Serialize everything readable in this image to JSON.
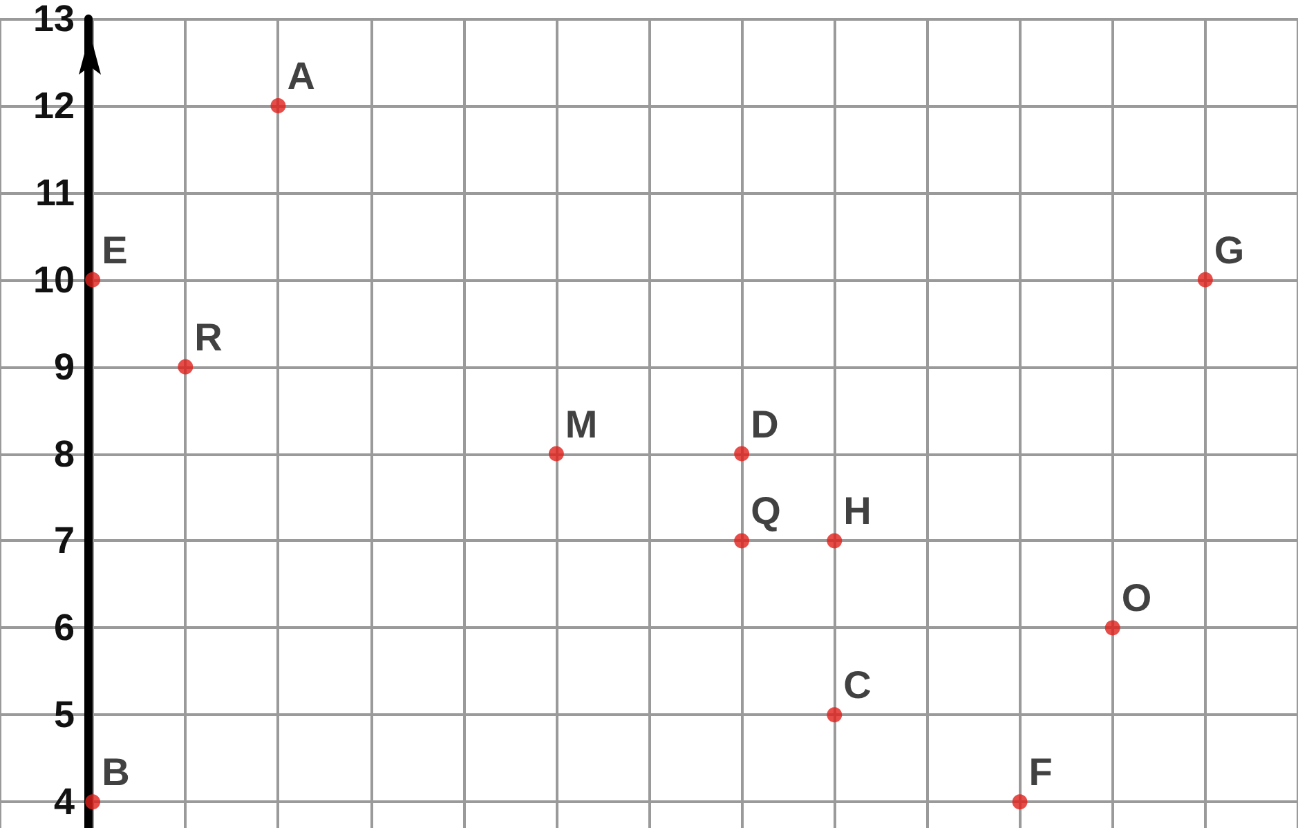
{
  "chart_data": {
    "type": "scatter",
    "categories": [
      null,
      null,
      null,
      null,
      null,
      null,
      null,
      null,
      null,
      null,
      null,
      null,
      null,
      null,
      null
    ],
    "series": [
      {
        "color": "#e0201b",
        "values": [
          null,
          10,
          9,
          12,
          null,
          null,
          8,
          null,
          8,
          7,
          null,
          4,
          6,
          10,
          null
        ],
        "value_labels": [
          null,
          "E",
          "R",
          "A",
          null,
          null,
          "M",
          null,
          "D",
          "H",
          null,
          "F",
          "O",
          "G",
          null
        ]
      },
      {
        "color": "#e0201b",
        "values": [
          null,
          4,
          null,
          null,
          null,
          null,
          null,
          null,
          7,
          5,
          null,
          null,
          null,
          null,
          null
        ],
        "value_labels": [
          null,
          "B",
          null,
          null,
          null,
          null,
          null,
          null,
          "Q",
          "C",
          null,
          null,
          null,
          null,
          null
        ]
      }
    ],
    "marker": "circle",
    "ylim": [
      3.7,
      13
    ],
    "yticks": [
      4,
      5,
      6,
      7,
      8,
      9,
      10,
      11,
      12,
      13
    ],
    "tick_labels": "y",
    "grid": true
  }
}
